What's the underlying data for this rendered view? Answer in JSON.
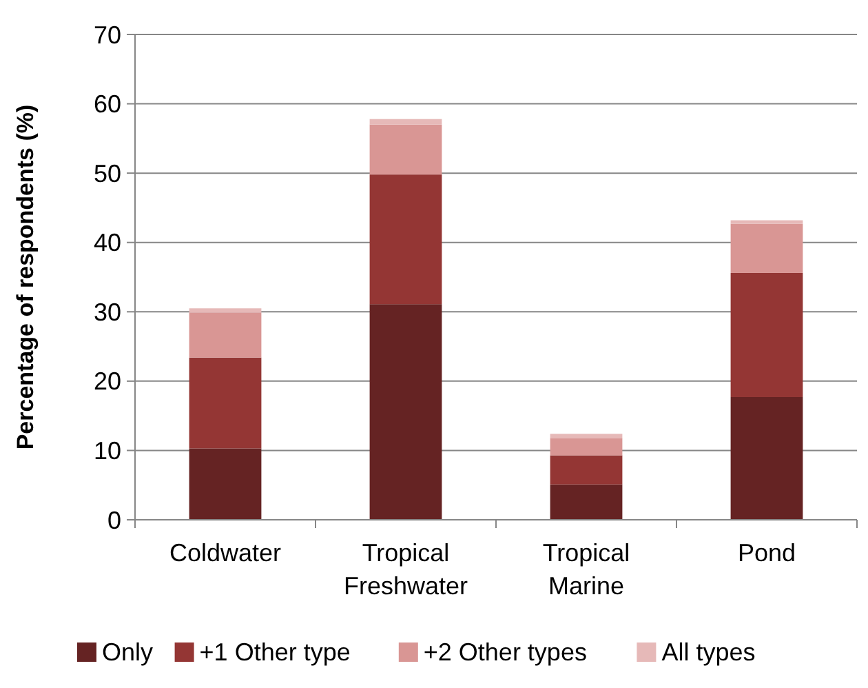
{
  "chart_data": {
    "type": "bar",
    "stacked": true,
    "ylabel": "Percentage of respondents (%)",
    "categories": [
      "Coldwater",
      "Tropical Freshwater",
      "Tropical Marine",
      "Pond"
    ],
    "series": [
      {
        "name": "Only",
        "color": "#652323",
        "values": [
          10.3,
          31.1,
          5.1,
          17.7
        ]
      },
      {
        "name": "+1 Other type",
        "color": "#943634",
        "values": [
          13.1,
          18.7,
          4.2,
          17.9
        ]
      },
      {
        "name": "+2 Other types",
        "color": "#d99694",
        "values": [
          6.5,
          7.2,
          2.5,
          7.1
        ]
      },
      {
        "name": "All types",
        "color": "#e6b9b8",
        "values": [
          0.6,
          0.8,
          0.6,
          0.5
        ]
      }
    ],
    "ylim": [
      0,
      70
    ],
    "yticks": [
      0,
      10,
      20,
      30,
      40,
      50,
      60,
      70
    ],
    "grid": "y",
    "legend": "bottom"
  }
}
